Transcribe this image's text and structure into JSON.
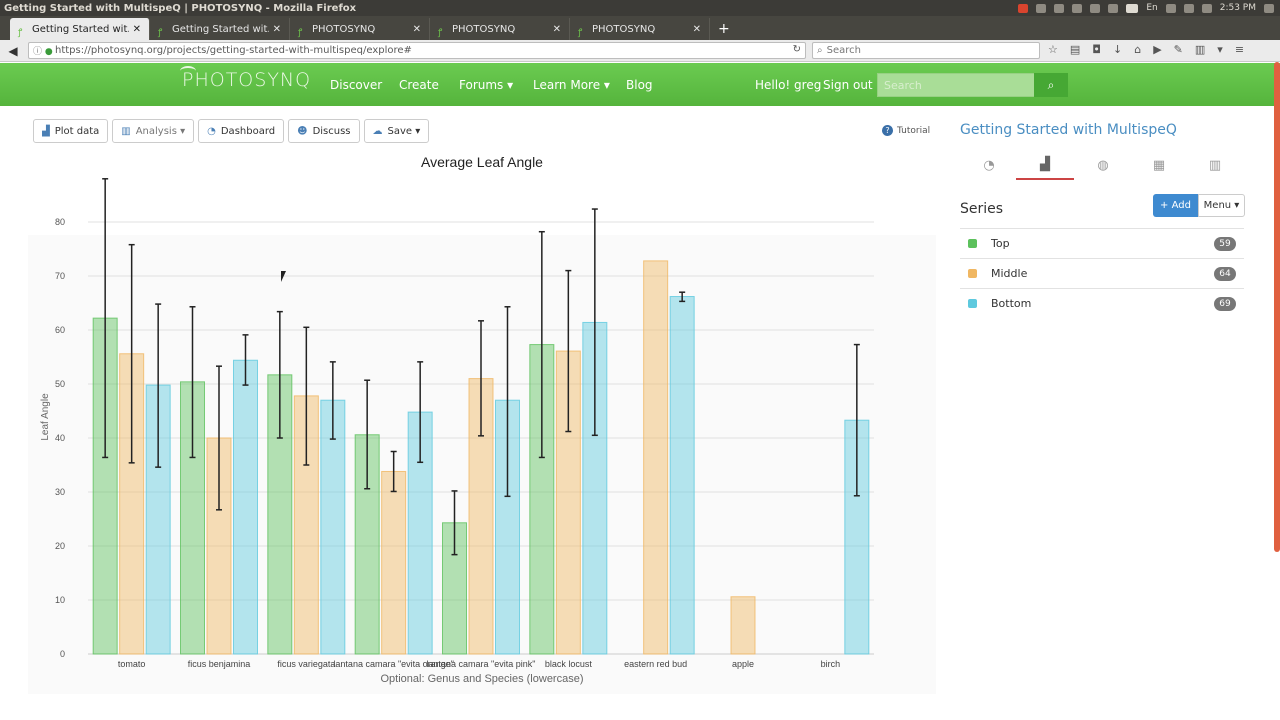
{
  "os": {
    "title": "Getting Started with MultispeQ | PHOTOSYNQ - Mozilla Firefox",
    "time": "2:53 PM",
    "lang": "En"
  },
  "browser": {
    "tabs": [
      {
        "label": "Getting Started wit..."
      },
      {
        "label": "Getting Started wit..."
      },
      {
        "label": "PHOTOSYNQ"
      },
      {
        "label": "PHOTOSYNQ"
      },
      {
        "label": "PHOTOSYNQ"
      }
    ],
    "url": "https://photosynq.org/projects/getting-started-with-multispeq/explore#",
    "search_placeholder": "Search"
  },
  "header": {
    "logo": "PHOTOSYNQ",
    "nav": [
      "Discover",
      "Create",
      "Forums ▾",
      "Learn More ▾",
      "Blog"
    ],
    "greeting": "Hello! greg",
    "sign_out": "Sign out",
    "search_placeholder": "Search"
  },
  "toolbar": {
    "plot_data": "Plot data",
    "analysis": "Analysis ▾",
    "dashboard": "Dashboard",
    "discuss": "Discuss",
    "save": "Save ▾",
    "tutorial": "Tutorial"
  },
  "panel": {
    "title": "Getting Started with MultispeQ",
    "series_heading": "Series",
    "add": "+ Add",
    "menu": "Menu ▾",
    "series": [
      {
        "name": "Top",
        "count": "59",
        "color": "#5cc15c"
      },
      {
        "name": "Middle",
        "count": "64",
        "color": "#f0b762"
      },
      {
        "name": "Bottom",
        "count": "69",
        "color": "#5ec9de"
      }
    ]
  },
  "chart_data": {
    "type": "bar",
    "title": "Average Leaf Angle",
    "xlabel": "Optional: Genus and Species (lowercase)",
    "ylabel": "Leaf Angle",
    "ylim": [
      0,
      80
    ],
    "yticks": [
      0,
      10,
      20,
      30,
      40,
      50,
      60,
      70,
      80
    ],
    "categories": [
      "tomato",
      "ficus benjamina",
      "ficus variegata",
      "lantana camara \"evita orange\"",
      "lantana camara \"evita pink\"",
      "black locust",
      "eastern red bud",
      "apple",
      "birch"
    ],
    "series": [
      {
        "name": "Top",
        "color": "#5cc15c",
        "values": [
          62.2,
          50.4,
          51.7,
          40.6,
          24.3,
          57.3,
          null,
          null,
          null
        ],
        "err_low": [
          36.4,
          36.4,
          40.0,
          30.6,
          18.4,
          36.4,
          null,
          null,
          null
        ],
        "err_high": [
          88.0,
          64.3,
          63.4,
          50.7,
          30.2,
          78.2,
          null,
          null,
          null
        ]
      },
      {
        "name": "Middle",
        "color": "#f0b762",
        "values": [
          55.6,
          40.0,
          47.8,
          33.8,
          51.0,
          56.1,
          72.8,
          10.6,
          null
        ],
        "err_low": [
          35.4,
          26.7,
          35.0,
          30.1,
          40.4,
          41.2,
          null,
          null,
          null
        ],
        "err_high": [
          75.8,
          53.3,
          60.5,
          37.5,
          61.7,
          71.0,
          null,
          null,
          null
        ]
      },
      {
        "name": "Bottom",
        "color": "#5ec9de",
        "values": [
          49.8,
          54.4,
          47.0,
          44.8,
          47.0,
          61.4,
          66.2,
          null,
          43.3
        ],
        "err_low": [
          34.6,
          49.8,
          39.8,
          35.5,
          29.2,
          40.5,
          65.3,
          null,
          29.3
        ],
        "err_high": [
          64.8,
          59.1,
          54.1,
          54.1,
          64.3,
          82.4,
          67.0,
          null,
          57.3
        ]
      }
    ]
  }
}
